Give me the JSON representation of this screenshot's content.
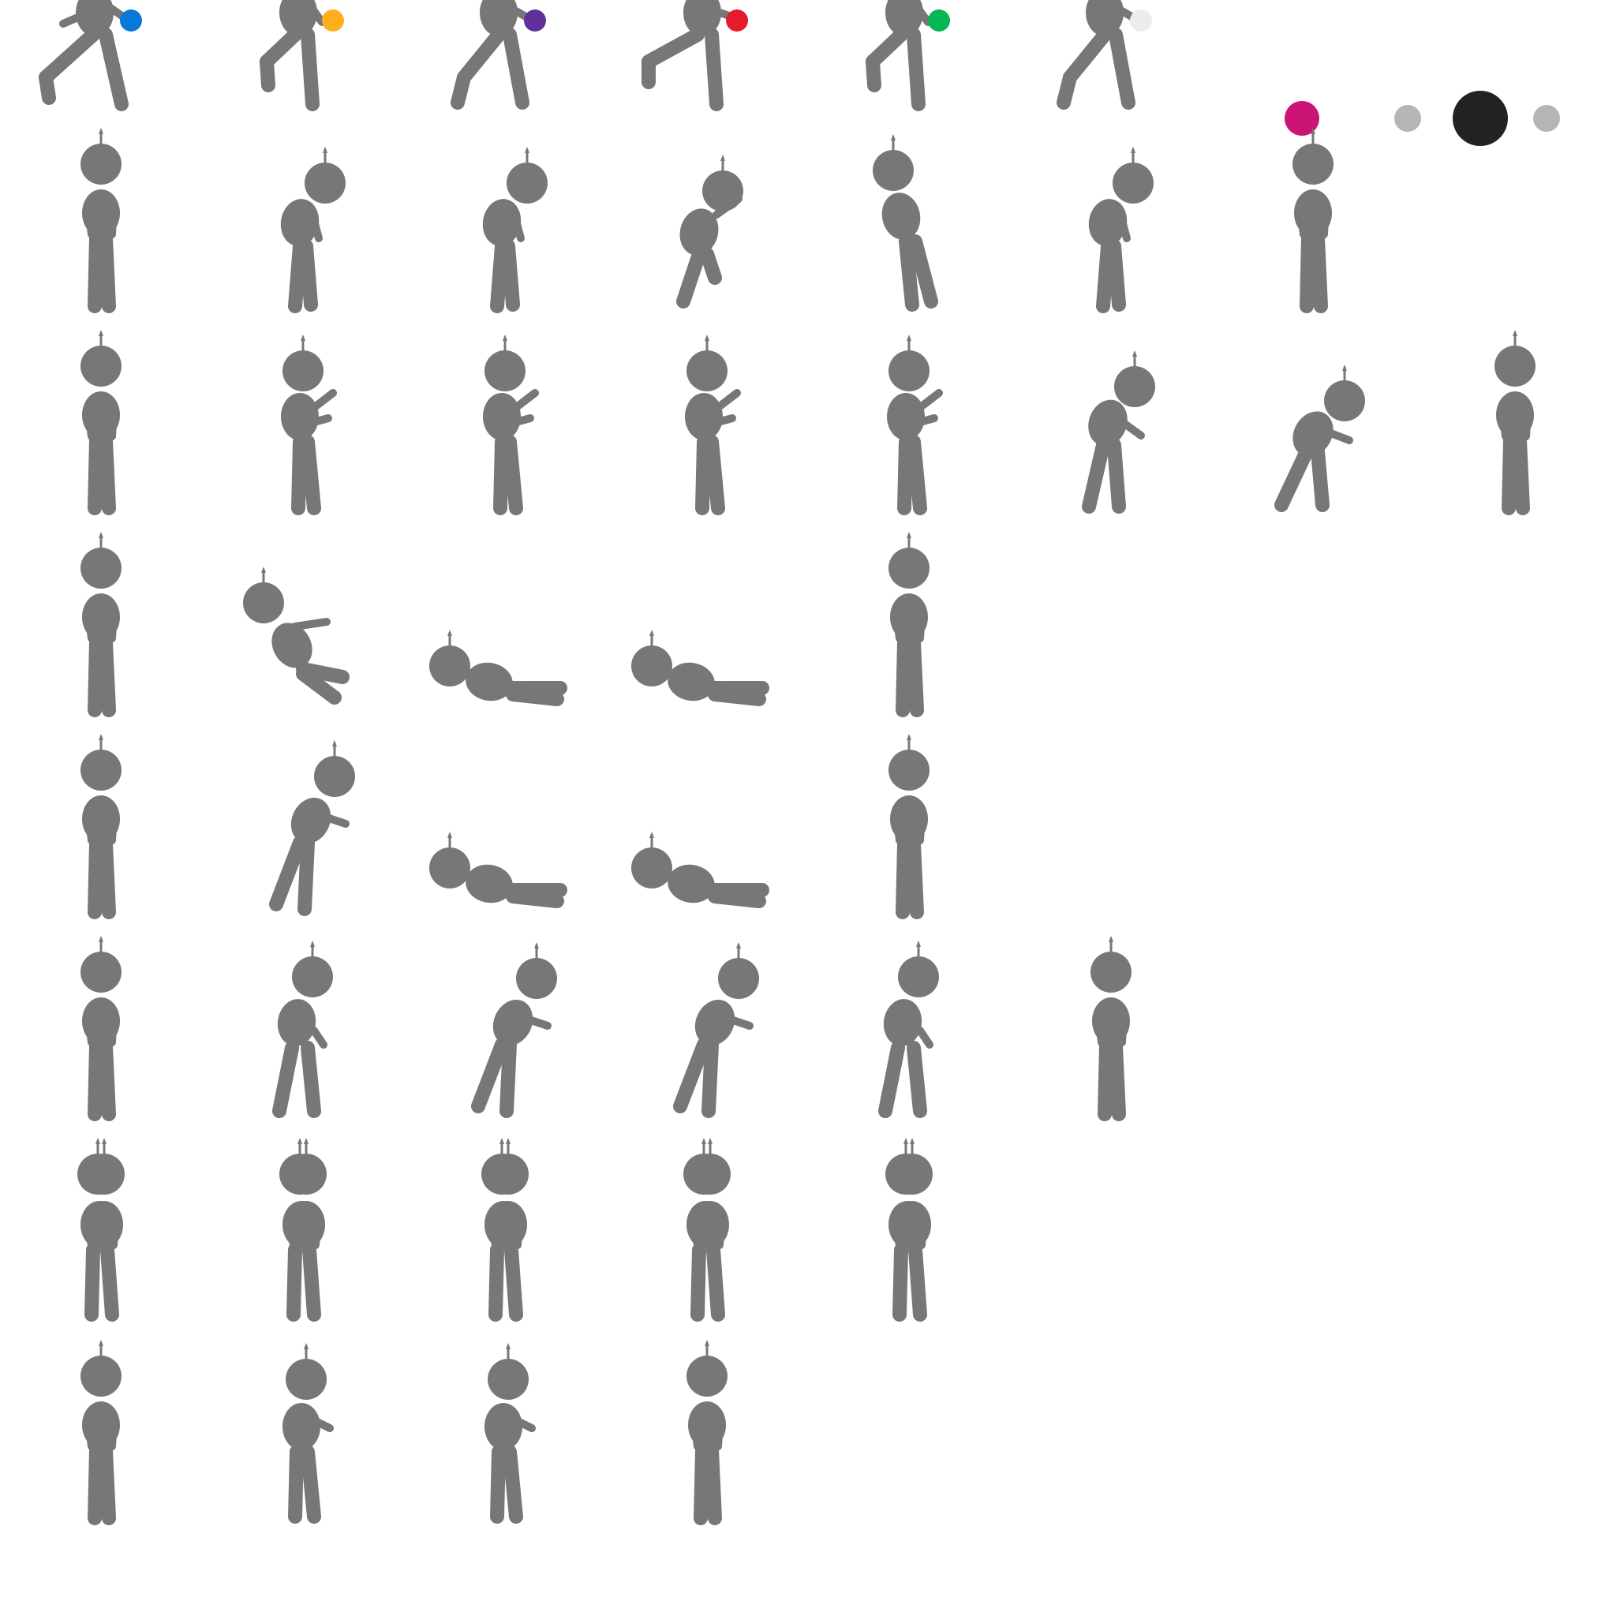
{
  "sprite_sheet": {
    "background_color": "#ffffff",
    "silhouette_color": "#777777",
    "rows": [
      {
        "name": "row-carry-ball-walk",
        "frames": [
          {
            "pose": "stride-right-wide",
            "ball_color": "#0a78d7"
          },
          {
            "pose": "kick-right",
            "ball_color": "#ffaf1d"
          },
          {
            "pose": "stride-left-wide",
            "ball_color": "#61309a"
          },
          {
            "pose": "kick-left-wide",
            "ball_color": "#e41a2d"
          },
          {
            "pose": "kick-right",
            "ball_color": "#06b553"
          },
          {
            "pose": "stride-left-wide",
            "ball_color": "#ececec"
          }
        ],
        "swatches": [
          {
            "color": "#cb1474",
            "size": "medium"
          },
          {
            "color": "#b5b5b5",
            "size": "small"
          },
          {
            "color": "#222222",
            "size": "large"
          },
          {
            "color": "#b5b5b5",
            "size": "small"
          }
        ]
      },
      {
        "name": "row-bend-lean",
        "frames": [
          {
            "pose": "stand"
          },
          {
            "pose": "lean-forward"
          },
          {
            "pose": "lean-forward"
          },
          {
            "pose": "crouch"
          },
          {
            "pose": "lean-back"
          },
          {
            "pose": "lean-forward"
          },
          {
            "pose": "stand"
          }
        ]
      },
      {
        "name": "row-reach-push",
        "frames": [
          {
            "pose": "stand"
          },
          {
            "pose": "reach-up"
          },
          {
            "pose": "reach-up"
          },
          {
            "pose": "reach-up"
          },
          {
            "pose": "reach-up"
          },
          {
            "pose": "push-forward"
          },
          {
            "pose": "push-forward-deep"
          },
          {
            "pose": "stand"
          }
        ]
      },
      {
        "name": "row-fall-backward",
        "frames": [
          {
            "pose": "stand"
          },
          {
            "pose": "sit-back"
          },
          {
            "pose": "lie-down"
          },
          {
            "pose": "lie-down"
          },
          {
            "pose": "stand"
          }
        ]
      },
      {
        "name": "row-fall-forward",
        "frames": [
          {
            "pose": "stand"
          },
          {
            "pose": "lunge-forward"
          },
          {
            "pose": "lie-down"
          },
          {
            "pose": "lie-down"
          },
          {
            "pose": "stand"
          }
        ]
      },
      {
        "name": "row-step-forward",
        "frames": [
          {
            "pose": "stand"
          },
          {
            "pose": "step-forward"
          },
          {
            "pose": "lunge-forward"
          },
          {
            "pose": "lunge-forward"
          },
          {
            "pose": "step-forward"
          },
          {
            "pose": "stand"
          }
        ]
      },
      {
        "name": "row-blur-shake",
        "frames": [
          {
            "pose": "shake"
          },
          {
            "pose": "shake"
          },
          {
            "pose": "shake"
          },
          {
            "pose": "shake"
          },
          {
            "pose": "shake"
          }
        ]
      },
      {
        "name": "row-wave-hand",
        "frames": [
          {
            "pose": "stand"
          },
          {
            "pose": "arm-raise"
          },
          {
            "pose": "arm-raise"
          },
          {
            "pose": "stand"
          }
        ]
      }
    ]
  }
}
